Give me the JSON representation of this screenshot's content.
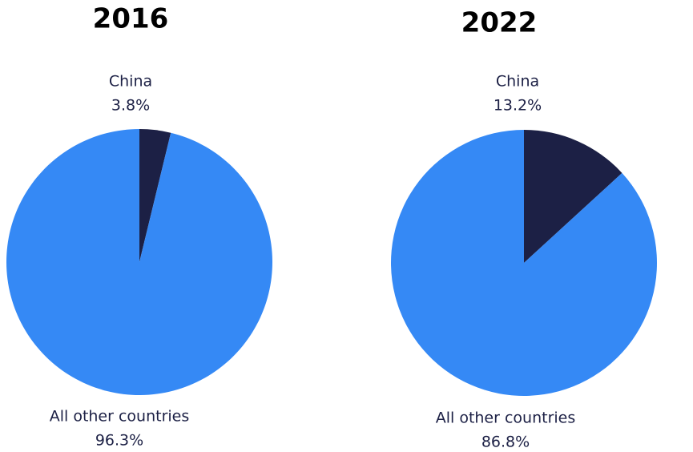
{
  "chart_data": [
    {
      "type": "pie",
      "title": "2016",
      "categories": [
        "China",
        "All other countries"
      ],
      "values": [
        3.8,
        96.3
      ],
      "value_labels": [
        "3.8%",
        "96.3%"
      ],
      "colors": [
        "#1c2045",
        "#3589f5"
      ]
    },
    {
      "type": "pie",
      "title": "2022",
      "categories": [
        "China",
        "All other countries"
      ],
      "values": [
        13.2,
        86.8
      ],
      "value_labels": [
        "13.2%",
        "86.8%"
      ],
      "colors": [
        "#1c2045",
        "#3589f5"
      ]
    }
  ]
}
